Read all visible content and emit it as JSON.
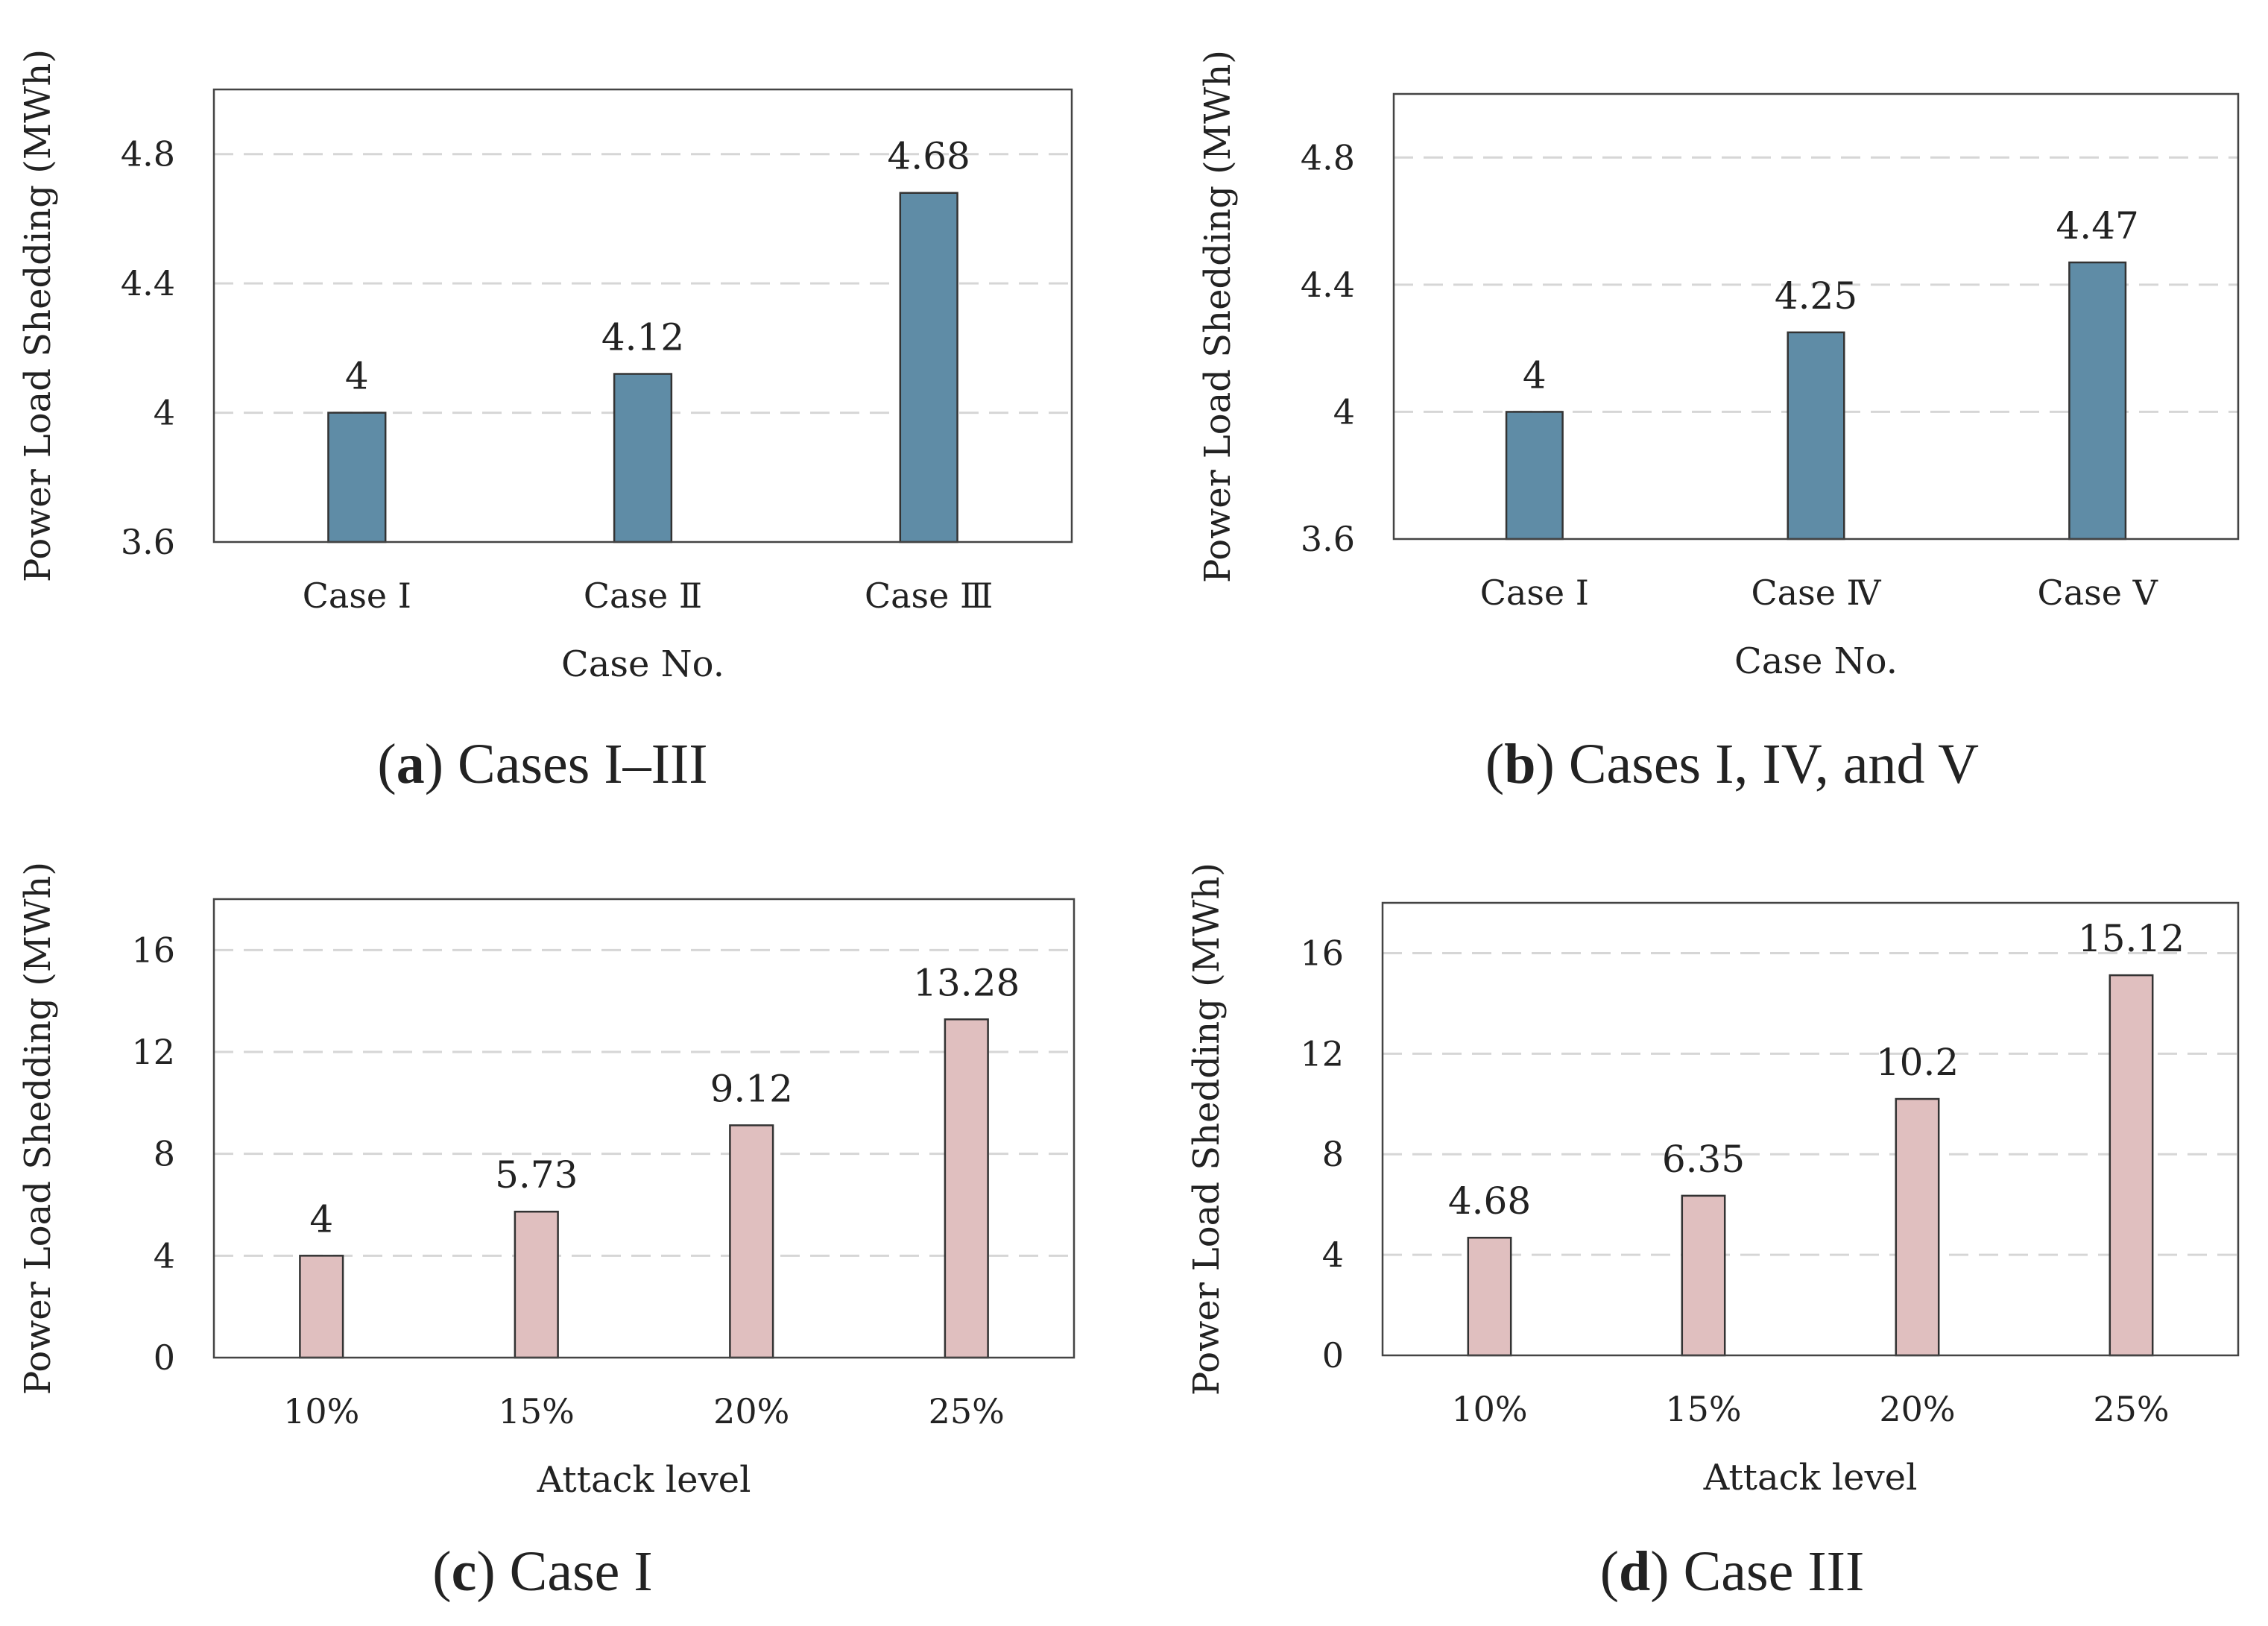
{
  "chart_data": [
    {
      "type": "bar",
      "caption_letter": "a",
      "caption_text": "Cases I–III",
      "categories": [
        "Case Ⅰ",
        "Case Ⅱ",
        "Case Ⅲ"
      ],
      "values": [
        4,
        4.12,
        4.68
      ],
      "value_labels": [
        "4",
        "4.12",
        "4.68"
      ],
      "xlabel": "Case No.",
      "ylabel": "Power Load Shedding (MWh)",
      "ylim": [
        3.6,
        5.0
      ],
      "yticks": [
        3.6,
        4,
        4.4,
        4.8
      ],
      "ytick_labels": [
        "3.6",
        "4",
        "4.4",
        "4.8"
      ],
      "bar_color": "#5f8ca6",
      "grid": true
    },
    {
      "type": "bar",
      "caption_letter": "b",
      "caption_text": "Cases I, IV, and V",
      "categories": [
        "Case Ⅰ",
        "Case Ⅳ",
        "Case Ⅴ"
      ],
      "values": [
        4,
        4.25,
        4.47
      ],
      "value_labels": [
        "4",
        "4.25",
        "4.47"
      ],
      "xlabel": "Case No.",
      "ylabel": "Power Load Shedding (MWh)",
      "ylim": [
        3.6,
        5.0
      ],
      "yticks": [
        3.6,
        4,
        4.4,
        4.8
      ],
      "ytick_labels": [
        "3.6",
        "4",
        "4.4",
        "4.8"
      ],
      "bar_color": "#5f8ca6",
      "grid": true
    },
    {
      "type": "bar",
      "caption_letter": "c",
      "caption_text": "Case I",
      "categories": [
        "10%",
        "15%",
        "20%",
        "25%"
      ],
      "values": [
        4,
        5.73,
        9.12,
        13.28
      ],
      "value_labels": [
        "4",
        "5.73",
        "9.12",
        "13.28"
      ],
      "xlabel": "Attack level",
      "ylabel": "Power Load Shedding (MWh)",
      "ylim": [
        0,
        18
      ],
      "yticks": [
        0,
        4,
        8,
        12,
        16
      ],
      "ytick_labels": [
        "0",
        "4",
        "8",
        "12",
        "16"
      ],
      "bar_color": "#e0bfbf",
      "grid": true
    },
    {
      "type": "bar",
      "caption_letter": "d",
      "caption_text": "Case III",
      "categories": [
        "10%",
        "15%",
        "20%",
        "25%"
      ],
      "values": [
        4.68,
        6.35,
        10.2,
        15.12
      ],
      "value_labels": [
        "4.68",
        "6.35",
        "10.2",
        "15.12"
      ],
      "xlabel": "Attack level",
      "ylabel": "Power Load Shedding (MWh)",
      "ylim": [
        0,
        18
      ],
      "yticks": [
        0,
        4,
        8,
        12,
        16
      ],
      "ytick_labels": [
        "0",
        "4",
        "8",
        "12",
        "16"
      ],
      "bar_color": "#e0bfbf",
      "grid": true
    }
  ]
}
